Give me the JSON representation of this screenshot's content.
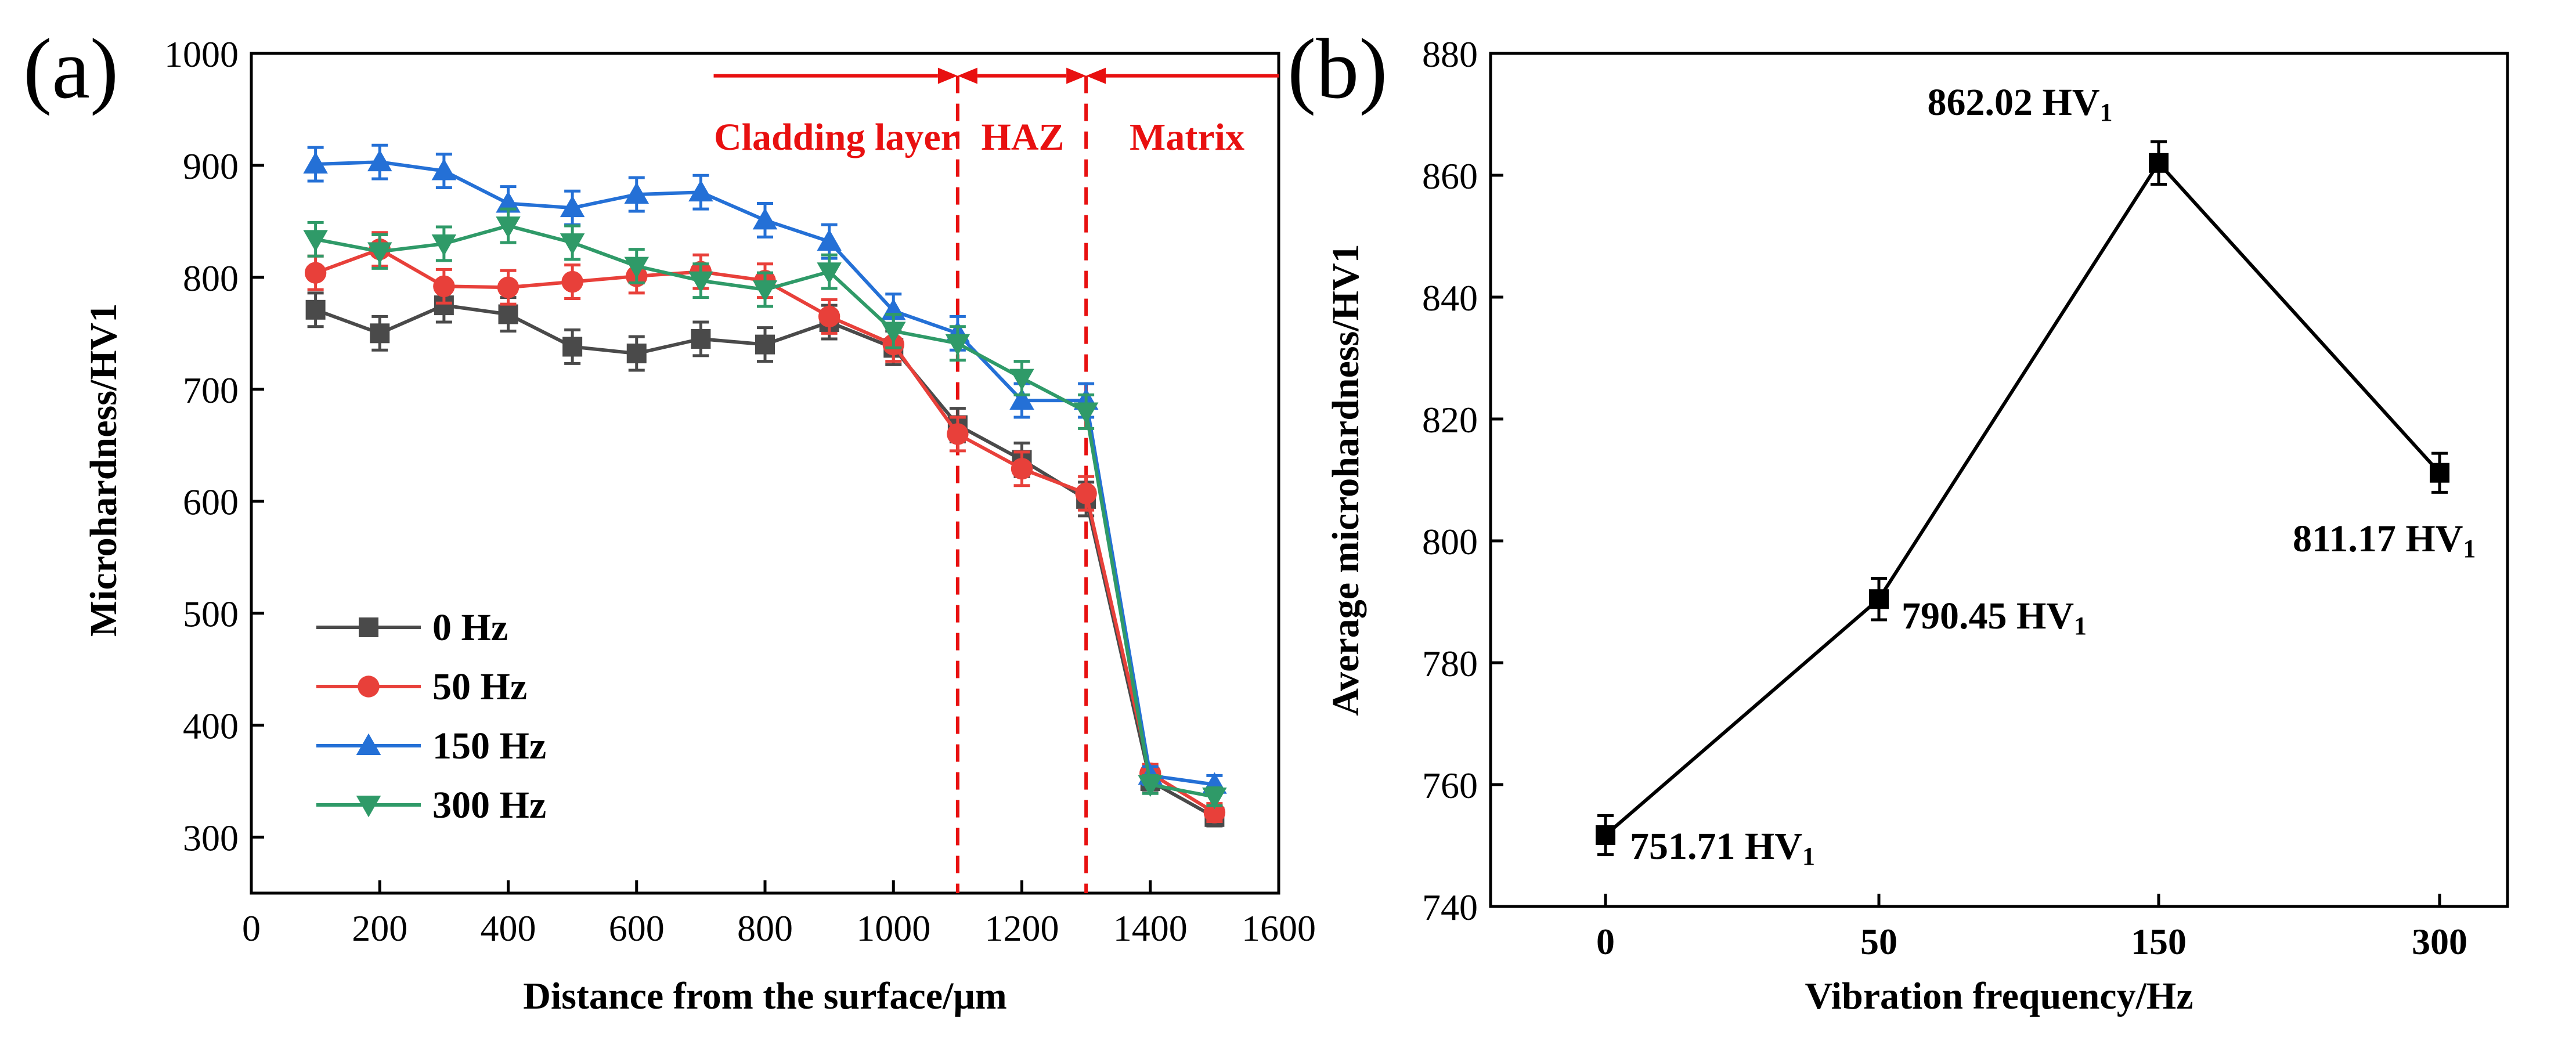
{
  "colors": {
    "axis": "#000000",
    "s0": "#4a4a4a",
    "s50": "#e8403a",
    "s150": "#2470d6",
    "s300": "#2f9a68",
    "annotation": "#e81010"
  },
  "chart_data": [
    {
      "panel_label": "(a)",
      "type": "line",
      "xlabel": "Distance from the surface/μm",
      "ylabel": "Microhardness/HV1",
      "xlim": [
        0,
        1600
      ],
      "ylim": [
        250,
        1000
      ],
      "xticks": [
        0,
        200,
        400,
        600,
        800,
        1000,
        1200,
        1400,
        1600
      ],
      "yticks": [
        300,
        400,
        500,
        600,
        700,
        800,
        900,
        1000
      ],
      "x": [
        100,
        200,
        300,
        400,
        500,
        600,
        700,
        800,
        900,
        1000,
        1100,
        1200,
        1300,
        1400,
        1500
      ],
      "series": [
        {
          "name": "0 Hz",
          "color_key": "s0",
          "marker": "square",
          "values": [
            771,
            750,
            775,
            767,
            738,
            732,
            745,
            740,
            760,
            737,
            668,
            637,
            602,
            350,
            318
          ],
          "err": [
            15,
            15,
            15,
            15,
            15,
            15,
            15,
            15,
            15,
            15,
            15,
            15,
            15,
            8,
            8
          ]
        },
        {
          "name": "50 Hz",
          "color_key": "s50",
          "marker": "circle",
          "values": [
            804,
            825,
            792,
            791,
            796,
            801,
            805,
            797,
            765,
            740,
            660,
            629,
            607,
            357,
            322
          ],
          "err": [
            15,
            15,
            15,
            15,
            15,
            15,
            15,
            15,
            15,
            15,
            15,
            15,
            15,
            8,
            8
          ]
        },
        {
          "name": "150 Hz",
          "color_key": "s150",
          "marker": "triangle-up",
          "values": [
            901,
            903,
            895,
            866,
            862,
            874,
            876,
            851,
            832,
            770,
            750,
            690,
            690,
            355,
            347
          ],
          "err": [
            15,
            15,
            15,
            15,
            15,
            15,
            15,
            15,
            15,
            15,
            15,
            15,
            15,
            8,
            8
          ]
        },
        {
          "name": "300 Hz",
          "color_key": "s300",
          "marker": "triangle-down",
          "values": [
            834,
            823,
            830,
            846,
            831,
            810,
            797,
            789,
            805,
            752,
            741,
            710,
            680,
            347,
            336
          ],
          "err": [
            15,
            15,
            15,
            15,
            15,
            15,
            15,
            15,
            15,
            15,
            15,
            15,
            15,
            8,
            8
          ]
        }
      ],
      "legend_position": "bottom-left",
      "regions": [
        {
          "label": "Cladding layer",
          "from": 720,
          "to": 1100
        },
        {
          "label": "HAZ",
          "from": 1100,
          "to": 1300
        },
        {
          "label": "Matrix",
          "from": 1300,
          "to": 1600
        }
      ],
      "boundaries": [
        1100,
        1300
      ]
    },
    {
      "panel_label": "(b)",
      "type": "line",
      "xlabel": "Vibration frequency/Hz",
      "ylabel": "Average microhardness/HV1",
      "categories": [
        "0",
        "50",
        "150",
        "300"
      ],
      "values": [
        751.71,
        790.45,
        862.02,
        811.17
      ],
      "err": [
        3.2,
        3.4,
        3.5,
        3.2
      ],
      "point_labels": [
        "751.71 HV",
        "790.45 HV",
        "862.02 HV",
        "811.17 HV"
      ],
      "label_subscript": "1",
      "ylim": [
        740,
        880
      ],
      "yticks": [
        740,
        760,
        780,
        800,
        820,
        840,
        860,
        880
      ]
    }
  ]
}
